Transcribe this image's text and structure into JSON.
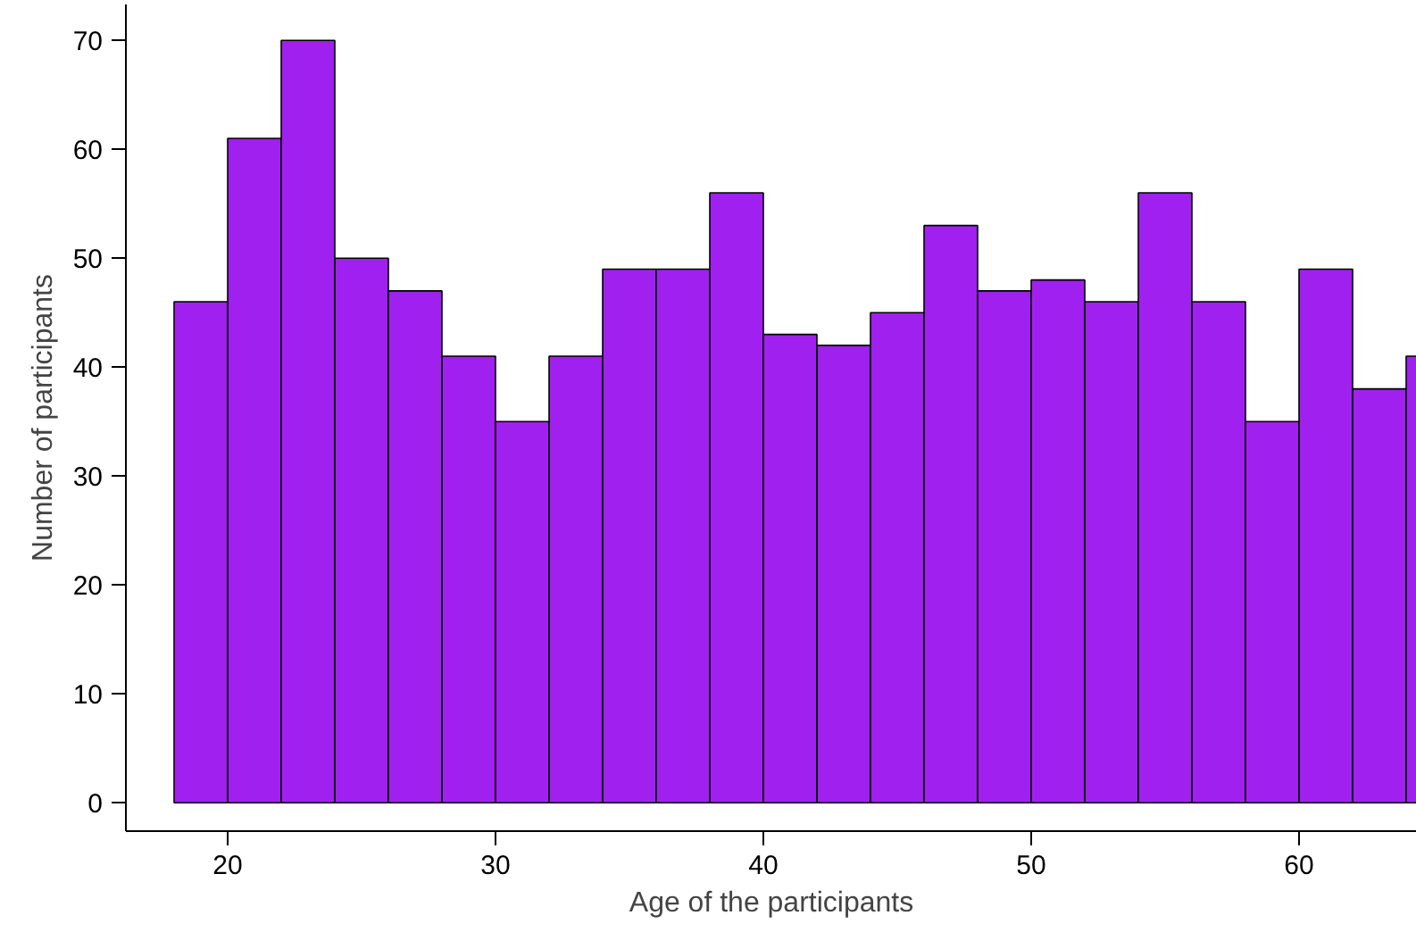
{
  "chart_data": {
    "type": "histogram",
    "xlabel": "Age of the participants",
    "ylabel": "Number of participants",
    "bins": [
      18,
      20,
      22,
      24,
      26,
      28,
      30,
      32,
      34,
      36,
      38,
      40,
      42,
      44,
      46,
      48,
      50,
      52,
      54,
      56,
      58,
      60,
      62,
      64,
      66
    ],
    "values": [
      46,
      61,
      70,
      50,
      47,
      41,
      35,
      41,
      49,
      49,
      56,
      43,
      42,
      45,
      53,
      47,
      48,
      46,
      56,
      46,
      35,
      49,
      38,
      41
    ],
    "color": "#a020f0",
    "xlim": [
      16.2,
      64.4
    ],
    "ylim": [
      -2.6,
      73.3
    ],
    "xticks": [
      20,
      30,
      40,
      50,
      60
    ],
    "yticks": [
      0,
      10,
      20,
      30,
      40,
      50,
      60,
      70
    ],
    "grid": false
  }
}
